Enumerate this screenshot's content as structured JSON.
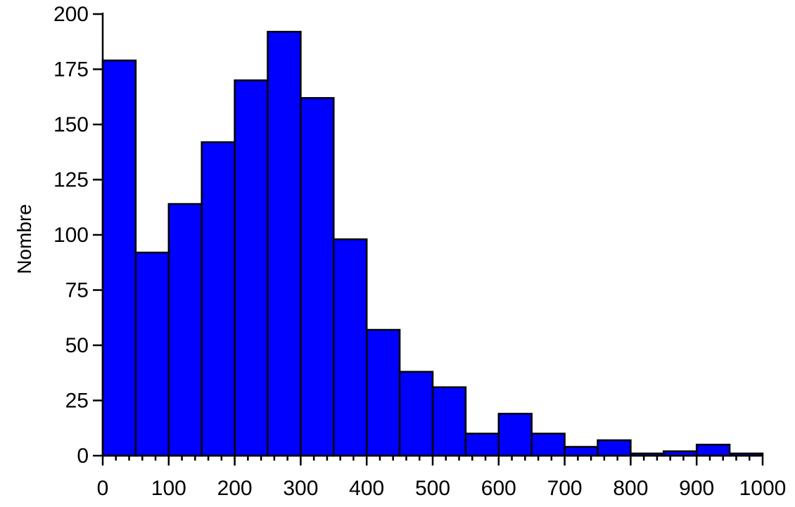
{
  "chart_data": {
    "type": "bar",
    "title": "",
    "xlabel": "",
    "ylabel": "Nombre",
    "xlim": [
      0,
      1000
    ],
    "ylim": [
      0,
      200
    ],
    "bin_width": 50,
    "bins_start": [
      0,
      50,
      100,
      150,
      200,
      250,
      300,
      350,
      400,
      450,
      500,
      550,
      600,
      650,
      700,
      750,
      800,
      850,
      900,
      950
    ],
    "values": [
      179,
      92,
      114,
      142,
      170,
      192,
      162,
      98,
      57,
      38,
      31,
      10,
      19,
      10,
      4,
      7,
      1,
      2,
      5,
      1
    ],
    "x_ticks": [
      "0",
      "100",
      "200",
      "300",
      "400",
      "500",
      "600",
      "700",
      "800",
      "900",
      "1000"
    ],
    "x_tick_values": [
      0,
      100,
      200,
      300,
      400,
      500,
      600,
      700,
      800,
      900,
      1000
    ],
    "y_ticks": [
      "0",
      "25",
      "50",
      "75",
      "100",
      "125",
      "150",
      "175",
      "200"
    ],
    "y_tick_values": [
      0,
      25,
      50,
      75,
      100,
      125,
      150,
      175,
      200
    ],
    "x_minor_step": 20,
    "grid": false,
    "legend": "none",
    "colors": {
      "bar_fill": "#0000ff",
      "bar_stroke": "#000000",
      "axis": "#000000"
    }
  }
}
